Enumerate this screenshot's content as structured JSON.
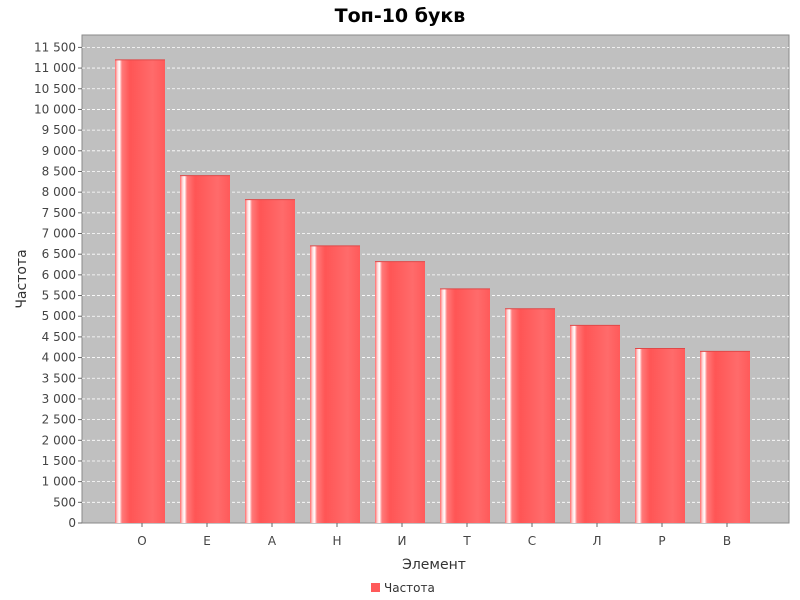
{
  "chart_data": {
    "type": "bar",
    "title": "Топ-10 букв",
    "xlabel": "Элемент",
    "ylabel": "Частота",
    "categories": [
      "О",
      "Е",
      "А",
      "Н",
      "И",
      "Т",
      "С",
      "Л",
      "Р",
      "В"
    ],
    "series": [
      {
        "name": "Частота",
        "values": [
          11200,
          8400,
          7820,
          6700,
          6320,
          5660,
          5180,
          4780,
          4220,
          4150
        ]
      }
    ],
    "ylim": [
      0,
      11800
    ],
    "yticks": [
      0,
      500,
      1000,
      1500,
      2000,
      2500,
      3000,
      3500,
      4000,
      4500,
      5000,
      5500,
      6000,
      6500,
      7000,
      7500,
      8000,
      8500,
      9000,
      9500,
      10000,
      10500,
      11000,
      11500
    ],
    "ytick_labels": [
      "0",
      "500",
      "1 000",
      "1 500",
      "2 000",
      "2 500",
      "3 000",
      "3 500",
      "4 000",
      "4 500",
      "5 000",
      "5 500",
      "6 000",
      "6 500",
      "7 000",
      "7 500",
      "8 000",
      "8 500",
      "9 000",
      "9 500",
      "10 000",
      "10 500",
      "11 000",
      "11 500"
    ],
    "grid": true,
    "legend_position": "bottom-center",
    "colors": {
      "bar": "#ff5a5a",
      "plot_background": "#c0c0c0",
      "grid": "#ffffff"
    }
  }
}
